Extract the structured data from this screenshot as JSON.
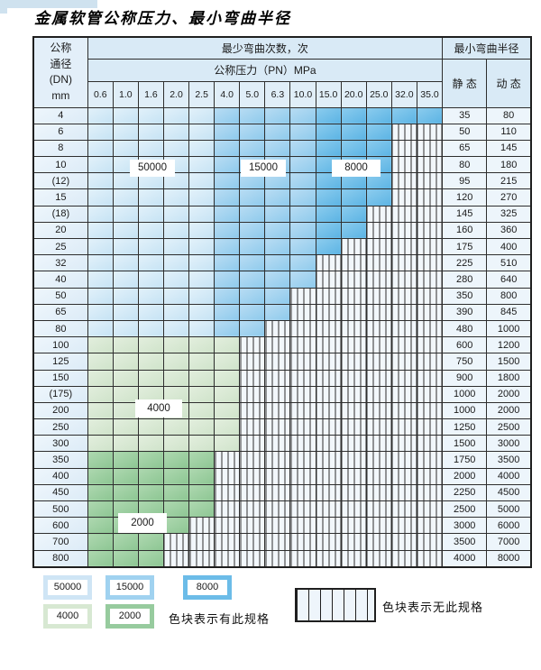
{
  "title": "金属软管公称压力、最小弯曲半径",
  "table": {
    "header": {
      "dn_lines": [
        "公称",
        "通径",
        "(DN)",
        "mm"
      ],
      "bend_cycles": "最少弯曲次数，次",
      "pressure": "公称压力（PN）MPa",
      "radius": "最小弯曲半径",
      "static": "静 态",
      "dynamic": "动 态",
      "pressures": [
        "0.6",
        "1.0",
        "1.6",
        "2.0",
        "2.5",
        "4.0",
        "5.0",
        "6.3",
        "10.0",
        "15.0",
        "20.0",
        "25.0",
        "32.0",
        "35.0"
      ]
    },
    "rows": [
      {
        "dn": "4",
        "s": "35",
        "d": "80",
        "colored": 14,
        "zone": "blue"
      },
      {
        "dn": "6",
        "s": "50",
        "d": "110",
        "colored": 12,
        "zone": "blue"
      },
      {
        "dn": "8",
        "s": "65",
        "d": "145",
        "colored": 12,
        "zone": "blue"
      },
      {
        "dn": "10",
        "s": "80",
        "d": "180",
        "colored": 12,
        "zone": "blue"
      },
      {
        "dn": "(12)",
        "s": "95",
        "d": "215",
        "colored": 12,
        "zone": "blue"
      },
      {
        "dn": "15",
        "s": "120",
        "d": "270",
        "colored": 12,
        "zone": "blue"
      },
      {
        "dn": "(18)",
        "s": "145",
        "d": "325",
        "colored": 11,
        "zone": "blue"
      },
      {
        "dn": "20",
        "s": "160",
        "d": "360",
        "colored": 11,
        "zone": "blue"
      },
      {
        "dn": "25",
        "s": "175",
        "d": "400",
        "colored": 10,
        "zone": "blue"
      },
      {
        "dn": "32",
        "s": "225",
        "d": "510",
        "colored": 9,
        "zone": "blue"
      },
      {
        "dn": "40",
        "s": "280",
        "d": "640",
        "colored": 9,
        "zone": "blue"
      },
      {
        "dn": "50",
        "s": "350",
        "d": "800",
        "colored": 8,
        "zone": "blue"
      },
      {
        "dn": "65",
        "s": "390",
        "d": "845",
        "colored": 8,
        "zone": "blue"
      },
      {
        "dn": "80",
        "s": "480",
        "d": "1000",
        "colored": 7,
        "zone": "blue"
      },
      {
        "dn": "100",
        "s": "600",
        "d": "1200",
        "colored": 6,
        "zone": "green_light"
      },
      {
        "dn": "125",
        "s": "750",
        "d": "1500",
        "colored": 6,
        "zone": "green_light"
      },
      {
        "dn": "150",
        "s": "900",
        "d": "1800",
        "colored": 6,
        "zone": "green_light"
      },
      {
        "dn": "(175)",
        "s": "1000",
        "d": "2000",
        "colored": 6,
        "zone": "green_light"
      },
      {
        "dn": "200",
        "s": "1000",
        "d": "2000",
        "colored": 6,
        "zone": "green_light"
      },
      {
        "dn": "250",
        "s": "1250",
        "d": "2500",
        "colored": 6,
        "zone": "green_light"
      },
      {
        "dn": "300",
        "s": "1500",
        "d": "3000",
        "colored": 6,
        "zone": "green_light"
      },
      {
        "dn": "350",
        "s": "1750",
        "d": "3500",
        "colored": 5,
        "zone": "green_dark"
      },
      {
        "dn": "400",
        "s": "2000",
        "d": "4000",
        "colored": 5,
        "zone": "green_dark"
      },
      {
        "dn": "450",
        "s": "2250",
        "d": "4500",
        "colored": 5,
        "zone": "green_dark"
      },
      {
        "dn": "500",
        "s": "2500",
        "d": "5000",
        "colored": 5,
        "zone": "green_dark"
      },
      {
        "dn": "600",
        "s": "3000",
        "d": "6000",
        "colored": 4,
        "zone": "green_dark"
      },
      {
        "dn": "700",
        "s": "3500",
        "d": "7000",
        "colored": 3,
        "zone": "green_dark"
      },
      {
        "dn": "800",
        "s": "4000",
        "d": "8000",
        "colored": 3,
        "zone": "green_dark"
      }
    ]
  },
  "zone_labels": {
    "z50000": "50000",
    "z15000": "15000",
    "z8000": "8000",
    "z4000": "4000",
    "z2000": "2000"
  },
  "legend": {
    "swatches": [
      {
        "label": "50000",
        "color": "#cfe5f5"
      },
      {
        "label": "15000",
        "color": "#a0d2f0"
      },
      {
        "label": "8000",
        "color": "#6cbce8"
      },
      {
        "label": "4000",
        "color": "#d7e8d2"
      },
      {
        "label": "2000",
        "color": "#97cb9e"
      }
    ],
    "has_spec_text": "色块表示有此规格",
    "no_spec_text": "色块表示无此规格"
  },
  "colors": {
    "cycles_50000": "#cfe5f5",
    "cycles_15000": "#a0d2f0",
    "cycles_8000": "#6cbce8",
    "cycles_4000": "#d7e8d2",
    "cycles_2000": "#97cb9e",
    "header_bg": "#d9eaf6",
    "grid": "#2e2e2e",
    "no_spec_hatch_bg": "#f2f7fb"
  }
}
